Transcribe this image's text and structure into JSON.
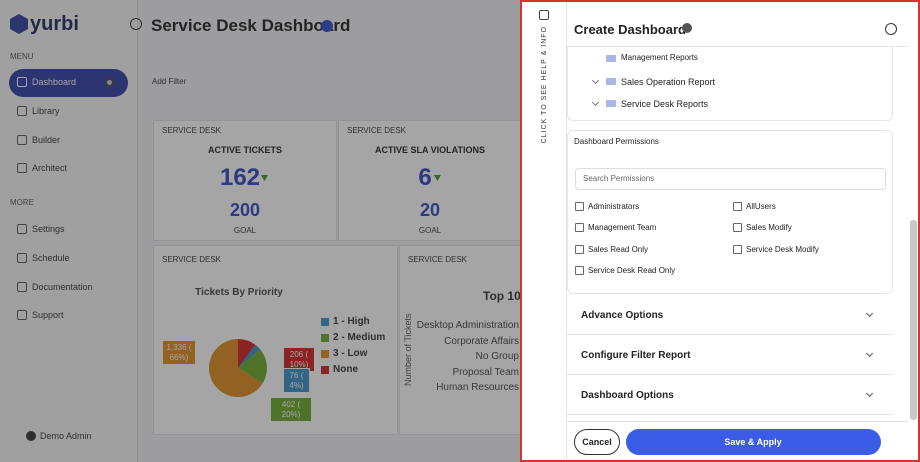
{
  "sidebar": {
    "logo": "yurbi",
    "menu_heading": "MENU",
    "menu": [
      "Dashboard",
      "Library",
      "Builder",
      "Architect"
    ],
    "more_heading": "MORE",
    "more": [
      "Settings",
      "Schedule",
      "Documentation",
      "Support"
    ],
    "user": "Demo Admin"
  },
  "header": {
    "title": "Service Desk Dashboard",
    "add_filter": "Add Filter"
  },
  "widgets": [
    {
      "section": "SERVICE DESK",
      "title": "ACTIVE TICKETS",
      "value": 162,
      "goal": 200,
      "goal_label": "GOAL"
    },
    {
      "section": "SERVICE DESK",
      "title": "ACTIVE SLA VIOLATIONS",
      "value": 6,
      "goal": 20,
      "goal_label": "GOAL"
    }
  ],
  "pie_widget": {
    "section": "SERVICE DESK",
    "title": "Tickets By Priority",
    "slices": [
      {
        "name": "None",
        "color": "#d11f1f",
        "value": 206,
        "value_label": "206 ( 10%)"
      },
      {
        "name": "1 - High",
        "color": "#3a8fc4",
        "value": 76,
        "value_label": "76 ( 4%)"
      },
      {
        "name": "2 - Medium",
        "color": "#6aaa2a",
        "value": 402,
        "value_label": "402 ( 20%)"
      },
      {
        "name": "3 - Low",
        "color": "#e08a1e",
        "value": 1336,
        "value_label": "1,336 ( 66%)"
      }
    ]
  },
  "bar_widget": {
    "section": "SERVICE DESK",
    "title": "Top 10",
    "y_label": "Number of Tickets",
    "categories": [
      "Desktop Administration",
      "Corporate Affairs",
      "No Group",
      "Proposal Team",
      "Human Resources"
    ]
  },
  "panel": {
    "side_tab": "CLICK TO SEE HELP & INFO",
    "title": "Create Dashboard",
    "folders": [
      "Management Reports",
      "Sales Operation Report",
      "Service Desk Reports"
    ],
    "permissions_heading": "Dashboard Permissions",
    "search_placeholder": "Search Permissions",
    "permissions": [
      "Administrators",
      "AllUsers",
      "Management Team",
      "Sales Modify",
      "Sales Read Only",
      "Service Desk Modify",
      "Service Desk Read Only"
    ],
    "sections": [
      "Advance Options",
      "Configure Filter Report",
      "Dashboard Options"
    ],
    "cancel": "Cancel",
    "save": "Save & Apply"
  }
}
